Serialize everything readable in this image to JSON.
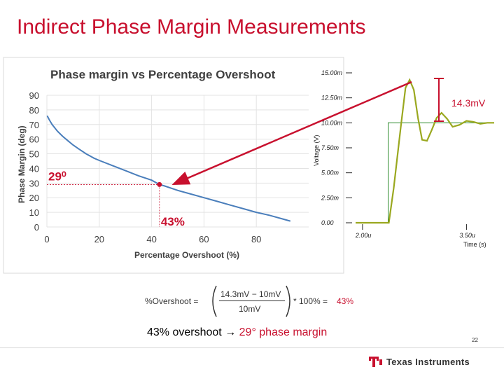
{
  "slide": {
    "title": "Indirect Phase Margin Measurements",
    "page_number": "22",
    "caption_prefix": "43% overshoot ",
    "caption_arrow": "→",
    "caption_highlight": "29° phase margin",
    "brand": "Texas Instruments",
    "colors": {
      "title": "#c8102e",
      "accent": "#c8102e",
      "curve": "#4a7ebb",
      "scope_trace": "#9aa81f",
      "scope_step": "#2e8b2e"
    }
  },
  "formula": {
    "lhs": "%Overshoot =",
    "numerator": "14.3mV − 10mV",
    "denominator": "10mV",
    "factor": "* 100% =",
    "result": "43%"
  },
  "chart_data": [
    {
      "type": "line",
      "title": "Phase margin vs Percentage Overshoot",
      "xlabel": "Percentage Overshoot (%)",
      "ylabel": "Phase Margin (deg)",
      "xlim": [
        0,
        100
      ],
      "ylim": [
        0,
        90
      ],
      "x_ticks": [
        "0",
        "20",
        "40",
        "60",
        "80"
      ],
      "y_ticks": [
        "0",
        "10",
        "20",
        "30",
        "40",
        "50",
        "60",
        "70",
        "80",
        "90"
      ],
      "grid": true,
      "series": [
        {
          "x": [
            0.1,
            1,
            2,
            4,
            6,
            8,
            10,
            12,
            15,
            18,
            20,
            25,
            30,
            35,
            40,
            43,
            45,
            50,
            55,
            60,
            65,
            70,
            75,
            80,
            85,
            90,
            93
          ],
          "y": [
            76,
            73,
            70,
            65.5,
            62,
            59,
            56,
            53.5,
            50,
            47,
            45.5,
            42,
            38.5,
            35,
            32,
            29,
            28,
            25,
            22.5,
            20,
            17.5,
            15,
            12.5,
            10,
            8,
            5.5,
            4
          ]
        }
      ],
      "annotations": [
        {
          "text": "29⁰",
          "x": 43,
          "y": 29,
          "axis": "y"
        },
        {
          "text": "43%",
          "x": 43,
          "y": 29,
          "axis": "x"
        }
      ]
    },
    {
      "type": "line",
      "xlabel": "Time (s)",
      "ylabel": "Voltage (V)",
      "y_ticks": [
        "0.00",
        "2.50m",
        "5.00m",
        "7.50m",
        "10.00m",
        "12.50m",
        "15.00m"
      ],
      "x_ticks": [
        "2.00u",
        "3.50u"
      ],
      "xlim": [
        1.9,
        3.9
      ],
      "ylim": [
        0,
        0.015
      ],
      "series": [
        {
          "name": "step",
          "x": [
            1.9,
            2.37,
            2.37,
            3.9
          ],
          "y": [
            0,
            0,
            0.01,
            0.01
          ]
        },
        {
          "name": "response",
          "x": [
            1.9,
            2.38,
            2.45,
            2.55,
            2.62,
            2.68,
            2.74,
            2.8,
            2.86,
            2.93,
            3.0,
            3.07,
            3.14,
            3.22,
            3.3,
            3.4,
            3.5,
            3.6,
            3.7,
            3.8,
            3.9
          ],
          "y": [
            0,
            0,
            0.0035,
            0.0095,
            0.0135,
            0.0143,
            0.0133,
            0.0105,
            0.0083,
            0.0082,
            0.0093,
            0.0105,
            0.011,
            0.0104,
            0.0096,
            0.0098,
            0.0102,
            0.0101,
            0.0099,
            0.01,
            0.01
          ]
        }
      ],
      "annotations": [
        {
          "text": "14.3mV"
        }
      ]
    }
  ]
}
